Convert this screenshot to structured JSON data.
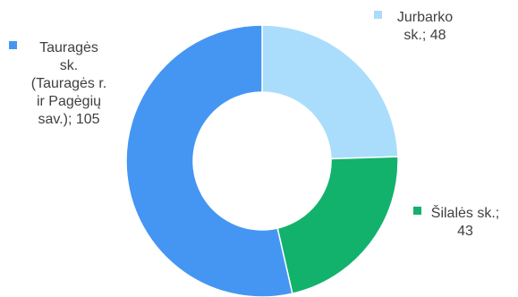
{
  "chart_data": {
    "type": "pie",
    "variant": "doughnut",
    "slices": [
      {
        "label_lines": [
          "Jurbarko",
          "sk.; 48"
        ],
        "name": "Jurbarko sk.",
        "value": 48,
        "color": "#a9ddfb"
      },
      {
        "label_lines": [
          "Šilalės sk.;",
          "43"
        ],
        "name": "Šilalės sk.",
        "value": 43,
        "color": "#12b26c"
      },
      {
        "label_lines": [
          "Tauragės",
          "sk.",
          "(Tauragės r.",
          "ir Pagėgių",
          "sav.); 105"
        ],
        "name": "Tauragės sk. (Tauragės r. ir Pagėgių sav.)",
        "value": 105,
        "color": "#4596f2"
      }
    ]
  }
}
